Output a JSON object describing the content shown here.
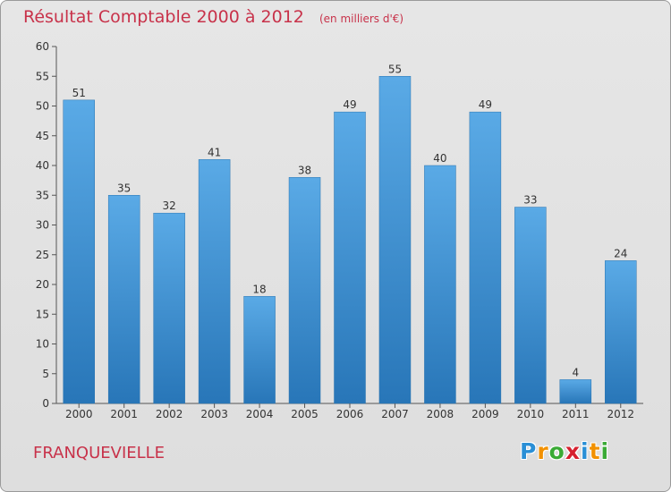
{
  "chart_data": {
    "type": "bar",
    "title": "Résultat Comptable 2000 à 2012",
    "unit_note": "(en milliers d'€)",
    "categories": [
      "2000",
      "2001",
      "2002",
      "2003",
      "2004",
      "2005",
      "2006",
      "2007",
      "2008",
      "2009",
      "2010",
      "2011",
      "2012"
    ],
    "values": [
      51,
      35,
      32,
      41,
      18,
      38,
      49,
      55,
      40,
      49,
      33,
      4,
      24
    ],
    "ylim": [
      0,
      60
    ],
    "yticks": [
      0,
      5,
      10,
      15,
      20,
      25,
      30,
      35,
      40,
      45,
      50,
      55,
      60
    ],
    "xlabel": "",
    "ylabel": "",
    "grid": false,
    "legend": "none"
  },
  "commune": "FRANQUEVIELLE",
  "logo": {
    "letters": [
      "P",
      "r",
      "o",
      "x",
      "i",
      "t",
      "i"
    ],
    "colors": [
      "#2a8fd6",
      "#f29100",
      "#3aaa35",
      "#d6202f",
      "#2a8fd6",
      "#f29100",
      "#3aaa35"
    ]
  },
  "colors": {
    "accent": "#c8324a",
    "bar_top": "#5aaae6",
    "bar_bottom": "#2876b8",
    "axis": "#555555",
    "text": "#333333"
  }
}
